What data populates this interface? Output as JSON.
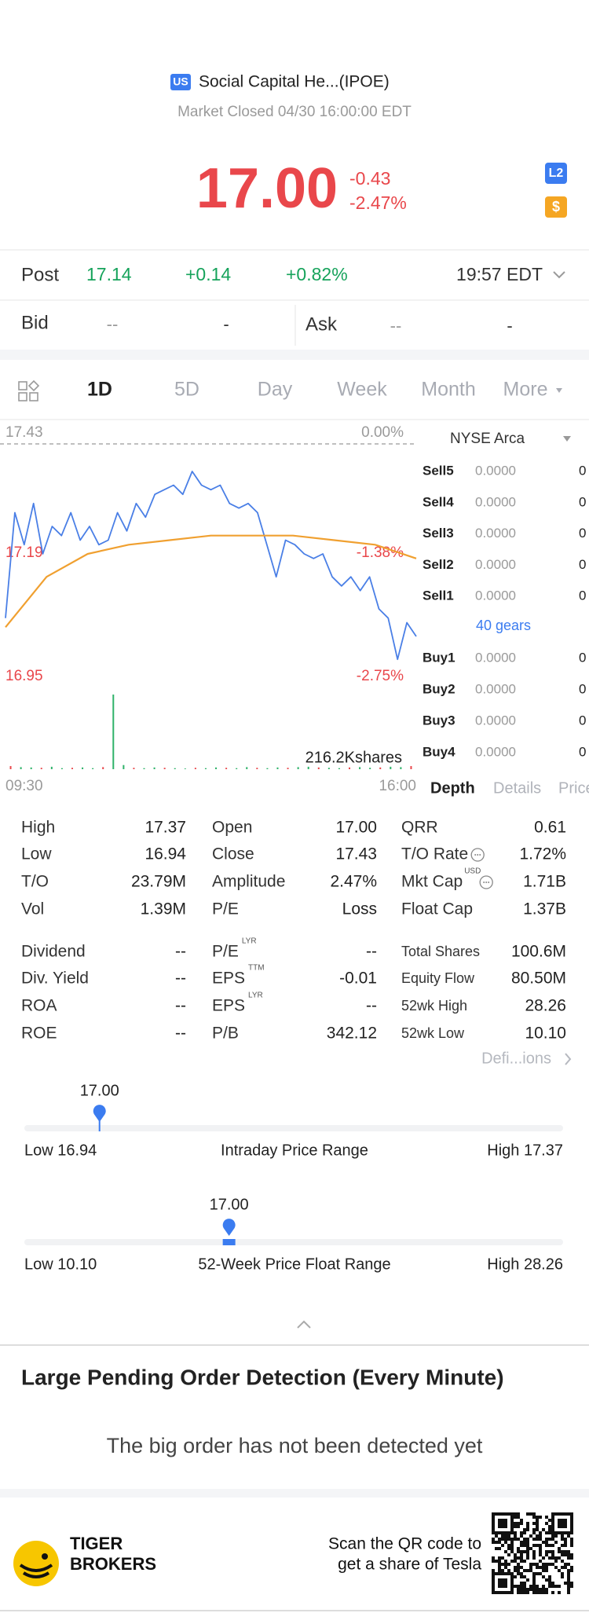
{
  "header": {
    "badge": "US",
    "title": "Social Capital He...(IPOE)",
    "status": "Market Closed 04/30 16:00:00 EDT"
  },
  "quote": {
    "price": "17.00",
    "change": "-0.43",
    "change_pct": "-2.47%",
    "badges": [
      "L2",
      "$"
    ]
  },
  "post": {
    "label": "Post",
    "price": "17.14",
    "change": "+0.14",
    "change_pct": "+0.82%",
    "time": "19:57 EDT"
  },
  "bid_ask": {
    "bid_label": "Bid",
    "bid_price": "--",
    "bid_size": "-",
    "ask_label": "Ask",
    "ask_price": "--",
    "ask_size": "-"
  },
  "tabs": [
    "1D",
    "5D",
    "Day",
    "Week",
    "Month",
    "More"
  ],
  "chart_data": {
    "type": "line",
    "ylim": [
      16.95,
      17.43
    ],
    "yticks": [
      17.43,
      17.19,
      16.95
    ],
    "y2lim": [
      -2.75,
      0
    ],
    "y2ticks": [
      {
        "value": 0,
        "label": "0.00%"
      },
      {
        "value": -1.38,
        "label": "-1.38%"
      },
      {
        "value": -2.75,
        "label": "-2.75%"
      }
    ],
    "x_labels": [
      "09:30",
      "16:00"
    ],
    "series": [
      {
        "name": "Price",
        "color": "#4a7fe6",
        "values": [
          17.05,
          17.28,
          17.21,
          17.3,
          17.19,
          17.25,
          17.23,
          17.28,
          17.22,
          17.25,
          17.21,
          17.22,
          17.28,
          17.24,
          17.3,
          17.27,
          17.32,
          17.33,
          17.34,
          17.32,
          17.37,
          17.34,
          17.33,
          17.34,
          17.3,
          17.29,
          17.3,
          17.28,
          17.21,
          17.14,
          17.22,
          17.21,
          17.19,
          17.18,
          17.19,
          17.14,
          17.12,
          17.14,
          17.11,
          17.14,
          17.07,
          17.05,
          16.96,
          17.04,
          17.01
        ]
      },
      {
        "name": "Average",
        "color": "#f0a030",
        "values": [
          17.03,
          17.14,
          17.19,
          17.21,
          17.22,
          17.23,
          17.23,
          17.23,
          17.22,
          17.21,
          17.18
        ]
      }
    ],
    "volume": {
      "label": "216.2Kshares",
      "color": "#2fb36a",
      "ylim": [
        0,
        216200
      ],
      "values": [
        9000,
        6000,
        5000,
        4000,
        7000,
        3000,
        4000,
        5000,
        3000,
        6000,
        216200,
        12000,
        4000,
        3000,
        5000,
        4000,
        3000,
        2000,
        4000,
        3000,
        5000,
        4000,
        3000,
        6000,
        4000,
        3000,
        5000,
        4000,
        6000,
        7000,
        5000,
        4000,
        3000,
        5000,
        6000,
        4000,
        5000,
        7000,
        6000,
        9000
      ]
    }
  },
  "order_book": {
    "exchange": "NYSE Arca",
    "sell": [
      {
        "label": "Sell5",
        "price": "0.0000",
        "size": "0"
      },
      {
        "label": "Sell4",
        "price": "0.0000",
        "size": "0"
      },
      {
        "label": "Sell3",
        "price": "0.0000",
        "size": "0"
      },
      {
        "label": "Sell2",
        "price": "0.0000",
        "size": "0"
      },
      {
        "label": "Sell1",
        "price": "0.0000",
        "size": "0"
      }
    ],
    "gears": "40 gears",
    "buy": [
      {
        "label": "Buy1",
        "price": "0.0000",
        "size": "0"
      },
      {
        "label": "Buy2",
        "price": "0.0000",
        "size": "0"
      },
      {
        "label": "Buy3",
        "price": "0.0000",
        "size": "0"
      },
      {
        "label": "Buy4",
        "price": "0.0000",
        "size": "0"
      }
    ],
    "tabs": [
      "Depth",
      "Details",
      "Price"
    ]
  },
  "stats": {
    "rows": [
      [
        {
          "label": "High",
          "value": "17.37"
        },
        {
          "label": "Open",
          "value": "17.00"
        },
        {
          "label": "QRR",
          "value": "0.61"
        }
      ],
      [
        {
          "label": "Low",
          "value": "16.94"
        },
        {
          "label": "Close",
          "value": "17.43"
        },
        {
          "label": "T/O Rate",
          "value": "1.72%",
          "icon": true
        }
      ],
      [
        {
          "label": "T/O",
          "value": "23.79M"
        },
        {
          "label": "Amplitude",
          "value": "2.47%"
        },
        {
          "label": "Mkt Cap",
          "sup": "USD",
          "value": "1.71B",
          "icon": true
        }
      ],
      [
        {
          "label": "Vol",
          "value": "1.39M"
        },
        {
          "label": "P/E",
          "value": "Loss"
        },
        {
          "label": "Float Cap",
          "value": "1.37B"
        }
      ],
      [
        {
          "label": "Dividend",
          "value": "--"
        },
        {
          "label": "P/E",
          "sup": "LYR",
          "value": "--"
        },
        {
          "label": "Total Shares",
          "value": "100.6M",
          "small": true
        }
      ],
      [
        {
          "label": "Div. Yield",
          "value": "--"
        },
        {
          "label": "EPS",
          "sup": "TTM",
          "value": "-0.01"
        },
        {
          "label": "Equity Flow",
          "value": "80.50M",
          "small": true
        }
      ],
      [
        {
          "label": "ROA",
          "value": "--"
        },
        {
          "label": "EPS",
          "sup": "LYR",
          "value": "--"
        },
        {
          "label": "52wk High",
          "value": "28.26",
          "small": true
        }
      ],
      [
        {
          "label": "ROE",
          "value": "--"
        },
        {
          "label": "P/B",
          "value": "342.12"
        },
        {
          "label": "52wk Low",
          "value": "10.10",
          "small": true
        }
      ]
    ]
  },
  "definitions_link": "Defi...ions",
  "ranges": [
    {
      "current": {
        "label": "17.00",
        "value": 17.0
      },
      "low": {
        "label": "Low 16.94",
        "value": 16.94
      },
      "title": "Intraday Price Range",
      "high": {
        "label": "High 17.37",
        "value": 17.37
      }
    },
    {
      "current": {
        "label": "17.00",
        "value": 17.0
      },
      "low": {
        "label": "Low 10.10",
        "value": 10.1
      },
      "title": "52-Week Price Float Range",
      "high": {
        "label": "High 28.26",
        "value": 28.26
      }
    }
  ],
  "large_orders": {
    "title": "Large Pending Order Detection (Every Minute)",
    "message": "The big order has not been detected yet"
  },
  "footer": {
    "brand": [
      "TIGER",
      "BROKERS"
    ],
    "cta": [
      "Scan the QR code to",
      "get a share of Tesla"
    ]
  }
}
